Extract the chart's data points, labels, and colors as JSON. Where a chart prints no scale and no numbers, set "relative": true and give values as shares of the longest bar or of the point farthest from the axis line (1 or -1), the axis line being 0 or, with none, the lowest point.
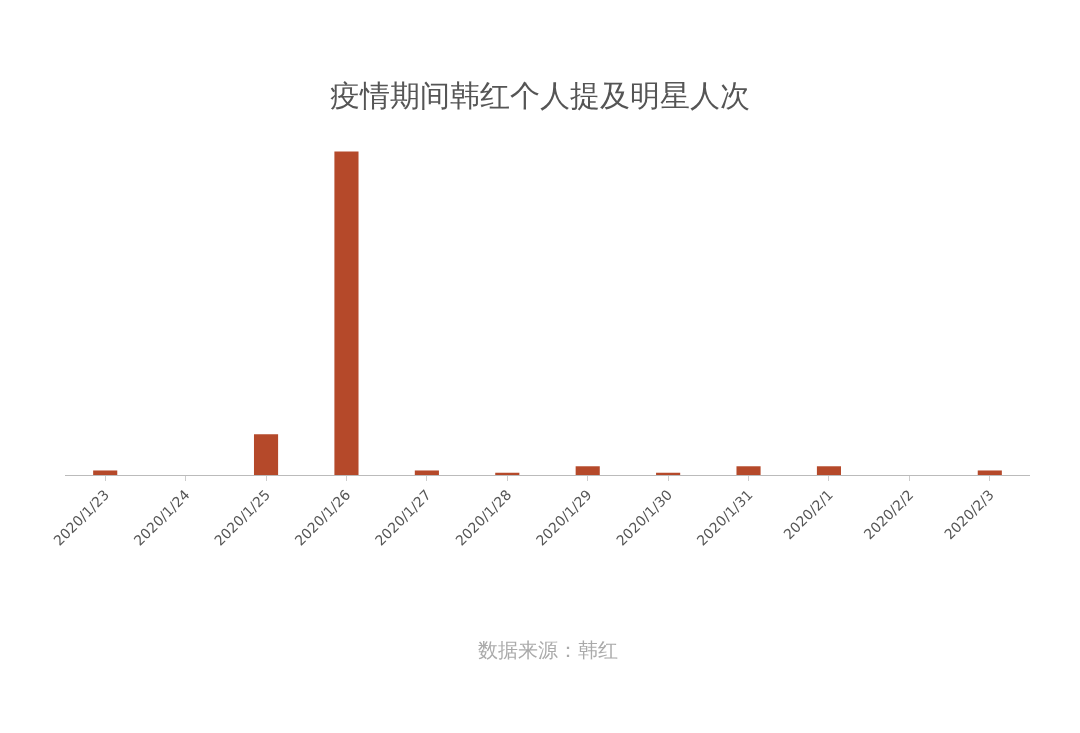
{
  "chart_data": {
    "type": "bar",
    "title": "疫情期间韩红个人提及明星人次",
    "relative": true,
    "categories": [
      "2020/1/23",
      "2020/1/24",
      "2020/1/25",
      "2020/1/26",
      "2020/1/27",
      "2020/1/28",
      "2020/1/29",
      "2020/1/30",
      "2020/1/31",
      "2020/2/1",
      "2020/2/2",
      "2020/2/3"
    ],
    "values": [
      0.014,
      0,
      0.126,
      1,
      0.014,
      0.007,
      0.027,
      0.007,
      0.027,
      0.027,
      0,
      0.014
    ],
    "color": "#b5492a",
    "grid": false,
    "legend": false,
    "annotations": [
      "数据来源：韩红"
    ]
  }
}
